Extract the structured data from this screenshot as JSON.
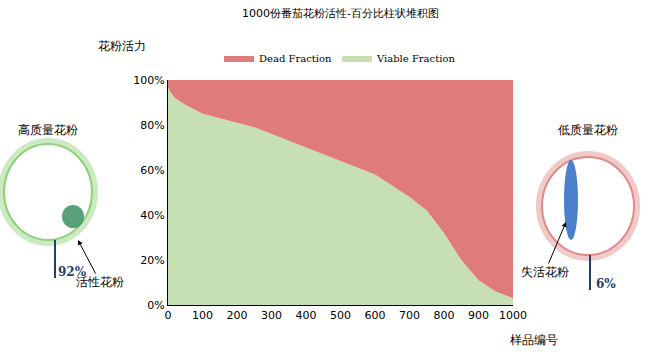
{
  "chart_data": {
    "type": "area",
    "stacked": true,
    "title": "1000份番茄花粉活性-百分比柱状堆积图",
    "y_label": "花粉活力",
    "x_label": "样品编号",
    "legend": "top",
    "grid": false,
    "x": [
      0,
      5,
      20,
      50,
      100,
      150,
      200,
      250,
      300,
      350,
      400,
      450,
      500,
      550,
      600,
      650,
      700,
      750,
      800,
      850,
      900,
      950,
      1000
    ],
    "series": [
      {
        "name": "Viable Fraction",
        "color": "#c6e0b4",
        "values": [
          97,
          95,
          92,
          89,
          85,
          83,
          81,
          79,
          76,
          73,
          70,
          67,
          64,
          61,
          58,
          53,
          48,
          42,
          32,
          20,
          11,
          6,
          3
        ]
      },
      {
        "name": "Dead Fraction",
        "color": "#e07b7b",
        "values": [
          3,
          5,
          8,
          11,
          15,
          17,
          19,
          21,
          24,
          27,
          30,
          33,
          36,
          39,
          42,
          47,
          52,
          58,
          68,
          80,
          89,
          94,
          97
        ]
      }
    ],
    "xlim": [
      0,
      1000
    ],
    "xticks": [
      0,
      100,
      200,
      300,
      400,
      500,
      600,
      700,
      800,
      900,
      1000
    ],
    "ylim": [
      0,
      100
    ],
    "yticks": [
      {
        "value": 0,
        "label": "0%"
      },
      {
        "value": 20,
        "label": "20%"
      },
      {
        "value": 40,
        "label": "40%"
      },
      {
        "value": 60,
        "label": "60%"
      },
      {
        "value": 80,
        "label": "80%"
      },
      {
        "value": 100,
        "label": "100%"
      }
    ],
    "panels": [
      {
        "title": "高质量花粉",
        "value": 92,
        "value_label": "92%",
        "note": "活性花粉",
        "color": "#8fd17a"
      },
      {
        "title": "低质量花粉",
        "value": 6,
        "value_label": "6%",
        "note": "失活花粉",
        "color": "#e08a8a"
      }
    ]
  }
}
